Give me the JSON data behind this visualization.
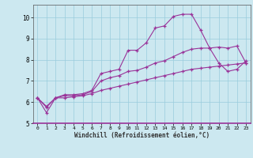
{
  "xlabel": "Windchill (Refroidissement éolien,°C)",
  "background_color": "#cce8f0",
  "grid_color": "#99ccdd",
  "line_color": "#993399",
  "xlim": [
    -0.5,
    23.5
  ],
  "ylim": [
    5,
    10.6
  ],
  "yticks": [
    5,
    6,
    7,
    8,
    9,
    10
  ],
  "xticks": [
    0,
    1,
    2,
    3,
    4,
    5,
    6,
    7,
    8,
    9,
    10,
    11,
    12,
    13,
    14,
    15,
    16,
    17,
    18,
    19,
    20,
    21,
    22,
    23
  ],
  "series1_x": [
    0,
    1,
    2,
    3,
    4,
    5,
    6,
    7,
    8,
    9,
    10,
    11,
    12,
    13,
    14,
    15,
    16,
    17,
    18,
    19,
    20,
    21,
    22,
    23
  ],
  "series1_y": [
    6.2,
    5.8,
    6.2,
    6.35,
    6.35,
    6.4,
    6.55,
    7.35,
    7.45,
    7.55,
    8.45,
    8.45,
    8.8,
    9.5,
    9.6,
    10.05,
    10.15,
    10.15,
    9.4,
    8.55,
    7.85,
    7.45,
    7.55,
    7.95
  ],
  "series2_x": [
    0,
    1,
    2,
    3,
    4,
    5,
    6,
    7,
    8,
    9,
    10,
    11,
    12,
    13,
    14,
    15,
    16,
    17,
    18,
    19,
    20,
    21,
    22,
    23
  ],
  "series2_y": [
    6.2,
    5.5,
    6.2,
    6.3,
    6.3,
    6.35,
    6.5,
    7.0,
    7.15,
    7.25,
    7.45,
    7.5,
    7.65,
    7.85,
    7.95,
    8.15,
    8.35,
    8.5,
    8.55,
    8.55,
    8.6,
    8.55,
    8.65,
    7.85
  ],
  "series3_x": [
    0,
    1,
    2,
    3,
    4,
    5,
    6,
    7,
    8,
    9,
    10,
    11,
    12,
    13,
    14,
    15,
    16,
    17,
    18,
    19,
    20,
    21,
    22,
    23
  ],
  "series3_y": [
    6.2,
    5.75,
    6.2,
    6.2,
    6.25,
    6.3,
    6.4,
    6.55,
    6.65,
    6.75,
    6.85,
    6.95,
    7.05,
    7.15,
    7.25,
    7.35,
    7.45,
    7.55,
    7.6,
    7.65,
    7.7,
    7.75,
    7.8,
    7.85
  ]
}
